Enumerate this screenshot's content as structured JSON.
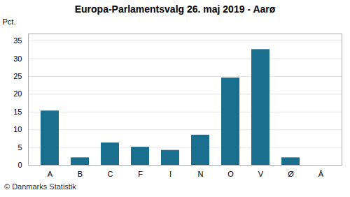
{
  "chart_data": {
    "type": "bar",
    "title": "Europa-Parlamentsvalg 26. maj 2019 - Aarø",
    "categories": [
      "A",
      "B",
      "C",
      "F",
      "I",
      "N",
      "O",
      "V",
      "Ø",
      "Å"
    ],
    "values": [
      15.3,
      2.1,
      6.3,
      5.1,
      4.2,
      8.5,
      24.6,
      32.6,
      2.1,
      0.0
    ],
    "color": "#1a6e8e",
    "ylabel": "Pct.",
    "ylim": [
      0,
      37
    ],
    "yticks": [
      0,
      5,
      10,
      15,
      20,
      25,
      30,
      35
    ],
    "grid": true,
    "caption": "© Danmarks Statistik"
  }
}
